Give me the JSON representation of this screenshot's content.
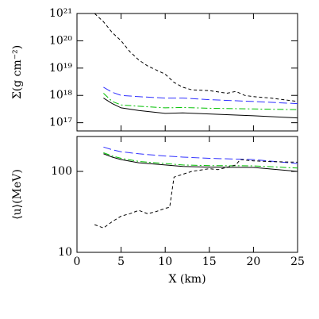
{
  "chart_data": [
    {
      "type": "line",
      "ylabel": "Σ(g cm⁻²)",
      "log_y": true,
      "grid": false,
      "xlim": [
        0,
        25
      ],
      "xticks": [
        0,
        5,
        10,
        15,
        20,
        25
      ],
      "ylim": [
        5e+16,
        1e+21
      ],
      "yticks": [
        {
          "value": 1e+17,
          "label": "10¹⁷"
        },
        {
          "value": 1e+18,
          "label": "10¹⁸"
        },
        {
          "value": 1e+19,
          "label": "10¹⁹"
        },
        {
          "value": 1e+20,
          "label": "10²⁰"
        },
        {
          "value": 1e+21,
          "label": "10²¹"
        }
      ],
      "series": [
        {
          "color": "#000000",
          "dash": "solid",
          "x": [
            3,
            4,
            5,
            7,
            10,
            12,
            15,
            20,
            25
          ],
          "values": [
            8e+17,
            5e+17,
            3.5e+17,
            2.8e+17,
            2.2e+17,
            2.3e+17,
            2.1e+17,
            1.8e+17,
            1.5e+17
          ]
        },
        {
          "color": "#00c000",
          "dash": "dashdot",
          "x": [
            3,
            4,
            5,
            7,
            10,
            12,
            15,
            20,
            25
          ],
          "values": [
            1.2e+18,
            6e+17,
            4.5e+17,
            4e+17,
            3.5e+17,
            3.6e+17,
            3.4e+17,
            3.2e+17,
            3e+17
          ]
        },
        {
          "color": "#3030ff",
          "dash": "longdash",
          "x": [
            3,
            4,
            5,
            7,
            10,
            12,
            15,
            20,
            25
          ],
          "values": [
            2e+18,
            1.3e+18,
            1e+18,
            9e+17,
            8e+17,
            8e+17,
            7e+17,
            6e+17,
            5e+17
          ]
        },
        {
          "color": "#000000",
          "dash": "shortdash",
          "x": [
            2,
            3,
            4,
            5,
            6,
            7,
            8,
            10,
            11,
            12,
            13,
            15,
            17,
            18,
            19,
            20,
            22,
            25
          ],
          "values": [
            1e+21,
            5e+20,
            2e+20,
            1e+20,
            4e+19,
            2e+19,
            1.2e+19,
            6e+18,
            3e+18,
            2e+18,
            1.6e+18,
            1.5e+18,
            1.2e+18,
            1.4e+18,
            1e+18,
            9e+17,
            8e+17,
            6e+17
          ]
        }
      ]
    },
    {
      "type": "line",
      "ylabel": "⟨u⟩(MeV)",
      "xlabel": "X (km)",
      "log_y": true,
      "grid": false,
      "xlim": [
        0,
        25
      ],
      "xticks": [
        0,
        5,
        10,
        15,
        20,
        25
      ],
      "ylim": [
        10,
        270
      ],
      "yticks": [
        10,
        100
      ],
      "series": [
        {
          "color": "#000000",
          "dash": "solid",
          "x": [
            3,
            4,
            5,
            7,
            10,
            12,
            15,
            20,
            25
          ],
          "values": [
            165,
            150,
            140,
            128,
            120,
            115,
            113,
            112,
            100
          ]
        },
        {
          "color": "#00c000",
          "dash": "dashdot",
          "x": [
            3,
            4,
            5,
            7,
            10,
            12,
            15,
            20,
            25
          ],
          "values": [
            170,
            155,
            145,
            133,
            125,
            120,
            118,
            117,
            110
          ]
        },
        {
          "color": "#3030ff",
          "dash": "longdash",
          "x": [
            3,
            4,
            5,
            7,
            10,
            12,
            15,
            20,
            25
          ],
          "values": [
            200,
            185,
            175,
            165,
            155,
            150,
            145,
            140,
            125
          ]
        },
        {
          "color": "#000000",
          "dash": "shortdash",
          "x": [
            2,
            3,
            4,
            5,
            6,
            7,
            8,
            9,
            10,
            10.5,
            11,
            13,
            15,
            16,
            18,
            18.5,
            20,
            22,
            25
          ],
          "values": [
            22,
            20,
            24,
            28,
            30,
            33,
            30,
            32,
            35,
            36,
            85,
            100,
            108,
            105,
            120,
            140,
            135,
            132,
            130
          ]
        }
      ]
    }
  ]
}
